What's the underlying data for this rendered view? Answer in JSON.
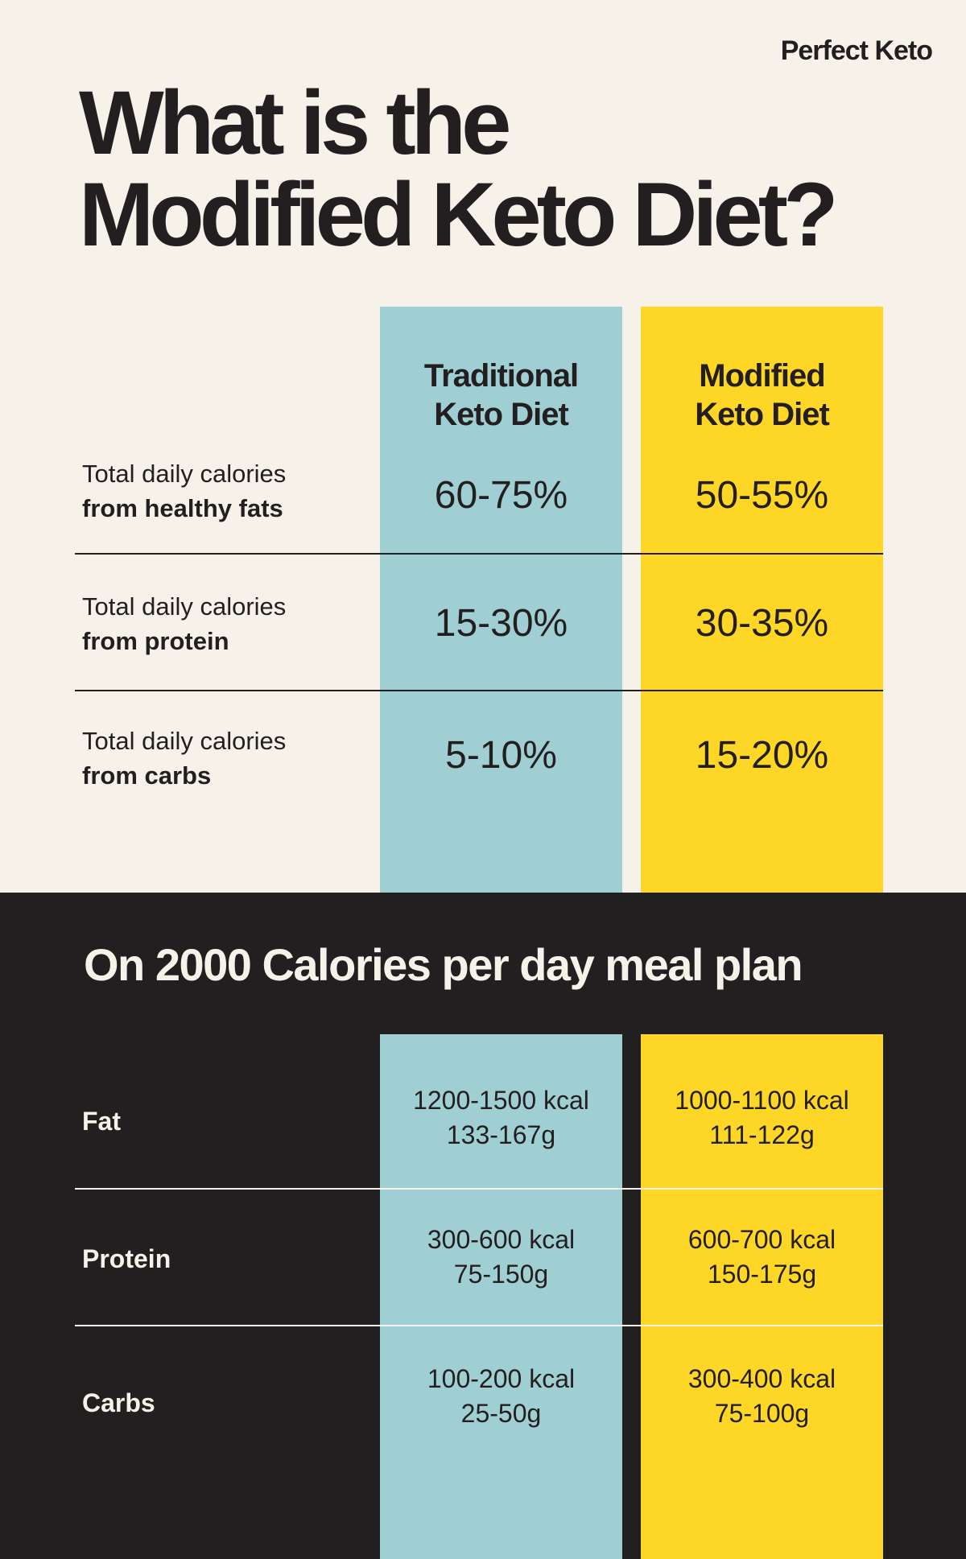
{
  "brand": "Perfect Keto",
  "title": {
    "line1": "What is the",
    "line2": "Modified Keto Diet?"
  },
  "colors": {
    "background": "#f6f2ea",
    "traditional": "#9fcfd3",
    "modified": "#fdd626",
    "dark": "#221f20"
  },
  "columns": [
    {
      "line1": "Traditional",
      "line2": "Keto Diet"
    },
    {
      "line1": "Modified",
      "line2": "Keto Diet"
    }
  ],
  "percent_rows": [
    {
      "label": "Total daily calories",
      "label_bold": "from healthy fats",
      "traditional": "60-75%",
      "modified": "50-55%"
    },
    {
      "label": "Total daily calories",
      "label_bold": "from protein",
      "traditional": "15-30%",
      "modified": "30-35%"
    },
    {
      "label": "Total daily calories",
      "label_bold": "from carbs",
      "traditional": "5-10%",
      "modified": "15-20%"
    }
  ],
  "meal_plan": {
    "heading": "On 2000 Calories per day meal plan",
    "rows": [
      {
        "label": "Fat",
        "traditional": {
          "kcal": "1200-1500 kcal",
          "grams": "133-167g"
        },
        "modified": {
          "kcal": "1000-1100 kcal",
          "grams": "111-122g"
        }
      },
      {
        "label": "Protein",
        "traditional": {
          "kcal": "300-600 kcal",
          "grams": "75-150g"
        },
        "modified": {
          "kcal": "600-700 kcal",
          "grams": "150-175g"
        }
      },
      {
        "label": "Carbs",
        "traditional": {
          "kcal": "100-200 kcal",
          "grams": "25-50g"
        },
        "modified": {
          "kcal": "300-400 kcal",
          "grams": "75-100g"
        }
      }
    ]
  }
}
